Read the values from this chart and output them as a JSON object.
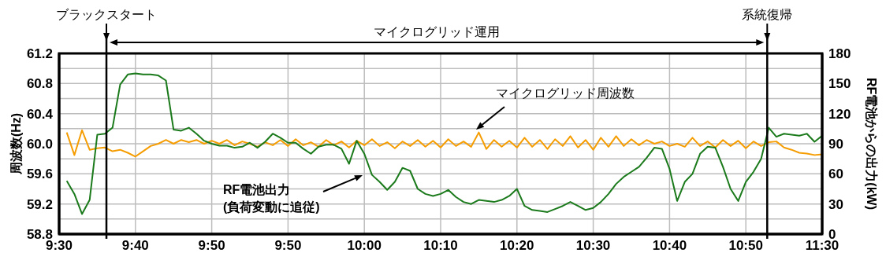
{
  "chart_data": {
    "type": "line",
    "ylabel": "周波数(Hz)",
    "y2label": "RF電池からの出力(kW)",
    "categories": [
      "9:30",
      null,
      null,
      null,
      null,
      null,
      null,
      null,
      null,
      null,
      "9:40",
      null,
      null,
      null,
      null,
      null,
      null,
      null,
      null,
      null,
      "9:50",
      null,
      null,
      null,
      null,
      null,
      null,
      null,
      null,
      null,
      "9:50",
      null,
      null,
      null,
      null,
      null,
      null,
      null,
      null,
      null,
      "10:00",
      null,
      null,
      null,
      null,
      null,
      null,
      null,
      null,
      null,
      "10:10",
      null,
      null,
      null,
      null,
      null,
      null,
      null,
      null,
      null,
      "10:20",
      null,
      null,
      null,
      null,
      null,
      null,
      null,
      null,
      null,
      "10:30",
      null,
      null,
      null,
      null,
      null,
      null,
      null,
      null,
      null,
      "10:40",
      null,
      null,
      null,
      null,
      null,
      null,
      null,
      null,
      null,
      "10:50",
      null,
      null,
      null,
      null,
      null,
      null,
      null,
      null,
      null,
      "11:30"
    ],
    "ylim": [
      58.8,
      61.2
    ],
    "yticks": [
      {
        "value": 58.8,
        "label": "58.8"
      },
      {
        "value": 59,
        "label": null
      },
      {
        "value": 59.2,
        "label": "59.2"
      },
      {
        "value": 59.4,
        "label": null
      },
      {
        "value": 59.6,
        "label": "59.6"
      },
      {
        "value": 59.8,
        "label": null
      },
      {
        "value": 60,
        "label": "60.0"
      },
      {
        "value": 60.2,
        "label": null
      },
      {
        "value": 60.4,
        "label": "60.4"
      },
      {
        "value": 60.6,
        "label": null
      },
      {
        "value": 60.8,
        "label": "60.8"
      },
      {
        "value": 61,
        "label": null
      },
      {
        "value": 61.2,
        "label": "61.2"
      }
    ],
    "y2lim": [
      0,
      180
    ],
    "y2ticks": [
      0,
      30,
      60,
      90,
      120,
      150,
      180
    ],
    "grid": true,
    "marker": "none",
    "line_style": "solid",
    "series": [
      {
        "color": "#f59d00",
        "values": [
          null,
          60.15,
          59.85,
          60.18,
          59.92,
          59.94,
          59.95,
          59.9,
          59.92,
          59.88,
          59.83,
          59.9,
          59.97,
          60.0,
          60.05,
          60.0,
          60.05,
          60.02,
          60.05,
          60.0,
          60.04,
          60.0,
          60.05,
          59.98,
          60.03,
          60.0,
          59.96,
          60.02,
          59.98,
          60.05,
          59.97,
          60.06,
          59.98,
          60.02,
          59.96,
          60.05,
          59.98,
          60.03,
          59.95,
          60.04,
          59.98,
          60.06,
          59.97,
          60.02,
          59.94,
          60.03,
          59.97,
          60.05,
          59.96,
          60.04,
          59.95,
          60.06,
          59.97,
          60.03,
          59.96,
          60.15,
          59.93,
          60.05,
          59.96,
          60.04,
          59.95,
          60.08,
          59.96,
          60.05,
          59.93,
          60.06,
          59.97,
          60.1,
          59.95,
          60.05,
          59.92,
          60.08,
          59.96,
          60.1,
          59.97,
          60.06,
          59.98,
          60.05,
          60.0,
          60.03,
          59.97,
          60.0,
          59.96,
          60.08,
          59.97,
          60.03,
          59.95,
          60.05,
          59.97,
          60.04,
          59.94,
          60.03,
          59.97,
          60.02,
          60.03,
          59.95,
          59.92,
          59.88,
          59.87,
          59.85,
          59.86
        ]
      },
      {
        "color": "#1b7a1b",
        "axis": "y2",
        "values": [
          null,
          53,
          40,
          20,
          34,
          99,
          100,
          106,
          149,
          159,
          160,
          159,
          159,
          158,
          153,
          104,
          103,
          106,
          100,
          93,
          90,
          88,
          88,
          86,
          87,
          91,
          86,
          92,
          100,
          96,
          91,
          91,
          85,
          80,
          87,
          89,
          89,
          85,
          70,
          93,
          80,
          59,
          52,
          44,
          52,
          66,
          63,
          45,
          40,
          38,
          40,
          44,
          37,
          32,
          30,
          34,
          33,
          32,
          34,
          38,
          45,
          28,
          24,
          23,
          22,
          25,
          28,
          32,
          28,
          24,
          26,
          32,
          40,
          50,
          57,
          62,
          67,
          76,
          86,
          85,
          65,
          33,
          52,
          60,
          80,
          87,
          86,
          67,
          45,
          33,
          52,
          62,
          75,
          106,
          97,
          100,
          99,
          98,
          100,
          92,
          98
        ]
      }
    ],
    "annotations": [
      "ブラックスタート",
      "系統復帰",
      "マイクログリッド運用",
      "マイクログリッド周波数",
      "RF電池出力\n(負荷変動に追従)"
    ]
  }
}
